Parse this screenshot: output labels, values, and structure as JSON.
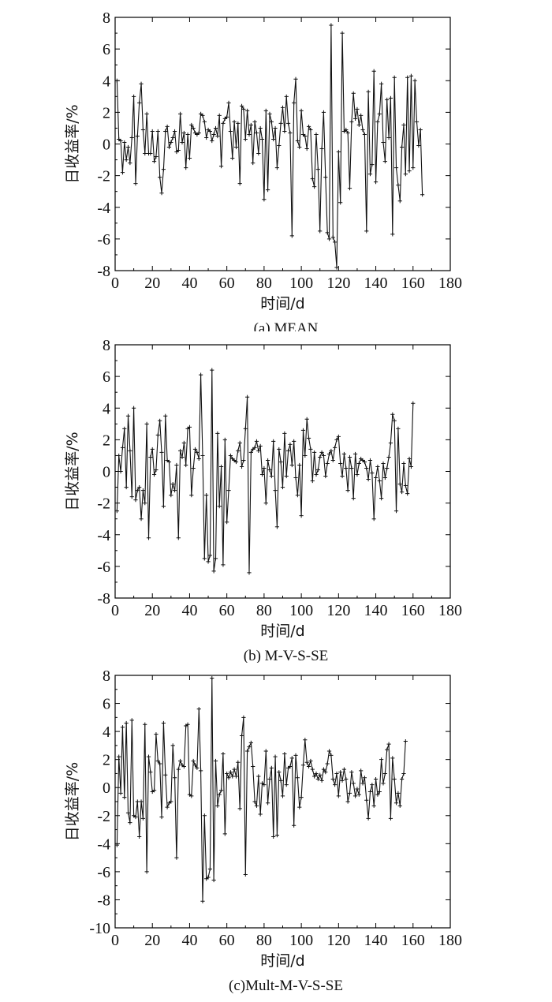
{
  "chart_data": [
    {
      "type": "line",
      "caption": "(a) MEAN",
      "xlabel": "时间/d",
      "ylabel": "日收益率/%",
      "xlim": [
        0,
        180
      ],
      "ylim": [
        -8,
        8
      ],
      "xticks": [
        "0",
        "20",
        "40",
        "60",
        "80",
        "100",
        "120",
        "140",
        "160",
        "180"
      ],
      "yticks": [
        "-8",
        "-6",
        "-4",
        "-2",
        "0",
        "2",
        "4",
        "6",
        "8"
      ],
      "series": [
        {
          "name": "MEAN",
          "x_start": 1,
          "x_step": 1,
          "values": [
            4.0,
            0.3,
            0.2,
            -1.8,
            0.1,
            -1.0,
            -0.2,
            -1.2,
            0.4,
            3.0,
            -2.5,
            0.5,
            2.6,
            3.8,
            0.9,
            -0.6,
            1.9,
            -0.6,
            -0.6,
            0.8,
            -1.1,
            -0.8,
            0.8,
            -2.1,
            -3.1,
            -1.6,
            0.8,
            1.1,
            -0.2,
            0.1,
            0.4,
            0.8,
            -0.5,
            -0.4,
            1.9,
            0.1,
            0.7,
            -1.5,
            0.6,
            -0.9,
            1.2,
            1.0,
            0.7,
            0.6,
            0.7,
            1.9,
            1.8,
            1.4,
            0.4,
            0.9,
            0.8,
            0.2,
            0.6,
            1.0,
            0.5,
            1.8,
            -1.4,
            1.3,
            1.6,
            1.7,
            2.6,
            0.8,
            -0.9,
            1.4,
            -0.2,
            1.3,
            -2.5,
            2.4,
            2.2,
            0.3,
            2.1,
            0.6,
            1.2,
            -1.2,
            1.4,
            0.7,
            -0.6,
            1.0,
            0.3,
            -3.5,
            2.1,
            -2.9,
            1.9,
            1.4,
            0.3,
            1.0,
            -1.5,
            -0.1,
            1.3,
            2.3,
            0.8,
            3.0,
            1.3,
            0.7,
            -5.8,
            2.6,
            4.1,
            0.2,
            -0.2,
            2.1,
            0.6,
            0.5,
            -0.3,
            1.1,
            0.9,
            -2.2,
            -2.7,
            0.6,
            -1.6,
            -5.5,
            -0.3,
            2.0,
            -2.1,
            -5.6,
            -6.0,
            7.5,
            -5.9,
            -6.2,
            -7.8,
            -0.5,
            -3.7,
            7.0,
            0.8,
            0.9,
            0.7,
            -2.8,
            1.4,
            3.2,
            1.6,
            2.2,
            1.2,
            1.8,
            0.9,
            0.6,
            -5.5,
            3.3,
            -1.9,
            -1.3,
            4.6,
            -2.4,
            1.4,
            1.9,
            3.8,
            0.1,
            -1.1,
            2.8,
            0.4,
            2.9,
            -5.7,
            4.2,
            -1.5,
            -2.6,
            -3.6,
            -0.2,
            1.2,
            -1.9,
            4.2,
            -1.7,
            4.3,
            -1.5,
            4.0,
            1.4,
            -0.1,
            0.9,
            -3.2
          ]
        }
      ]
    },
    {
      "type": "line",
      "caption": "(b) M-V-S-SE",
      "xlabel": "时间/d",
      "ylabel": "日收益率/%",
      "xlim": [
        0,
        180
      ],
      "ylim": [
        -8,
        8
      ],
      "xticks": [
        "0",
        "20",
        "40",
        "60",
        "80",
        "100",
        "120",
        "140",
        "160",
        "180"
      ],
      "yticks": [
        "-8",
        "-6",
        "-4",
        "-2",
        "0",
        "2",
        "4",
        "6",
        "8"
      ],
      "series": [
        {
          "name": "M-V-S-SE",
          "x_start": 1,
          "x_step": 1,
          "values": [
            -2.5,
            1.0,
            0.0,
            1.5,
            2.7,
            -1.0,
            3.5,
            1.3,
            -1.6,
            4.0,
            -1.8,
            -1.2,
            -1.0,
            -3.0,
            -1.2,
            -2.0,
            3.0,
            -4.2,
            0.9,
            1.4,
            -0.2,
            0.1,
            2.3,
            3.2,
            1.2,
            -2.2,
            3.5,
            0.7,
            0.6,
            -1.5,
            -0.8,
            -1.2,
            0.4,
            -4.2,
            1.3,
            0.9,
            1.8,
            0.4,
            2.7,
            2.8,
            -1.5,
            0.2,
            1.4,
            1.2,
            0.8,
            6.1,
            1.0,
            -5.5,
            -1.5,
            -5.7,
            -5.3,
            6.4,
            -6.3,
            -5.5,
            2.4,
            -2.2,
            0.3,
            -5.9,
            2.0,
            -3.2,
            -1.2,
            1.0,
            0.8,
            0.7,
            0.6,
            1.3,
            1.8,
            0.3,
            0.7,
            2.7,
            4.7,
            -6.4,
            1.2,
            1.4,
            1.5,
            1.9,
            1.3,
            1.6,
            -0.2,
            0.2,
            -2.0,
            0.7,
            0.1,
            -0.3,
            1.9,
            -1.2,
            -3.5,
            1.4,
            0.6,
            -1.0,
            2.4,
            -0.3,
            1.3,
            1.7,
            0.4,
            1.9,
            -0.4,
            -1.5,
            0.4,
            -2.8,
            2.6,
            1.0,
            3.3,
            2.1,
            1.4,
            -0.6,
            1.2,
            -0.2,
            0.1,
            0.9,
            1.2,
            1.0,
            -0.3,
            0.5,
            1.1,
            1.3,
            0.7,
            1.5,
            2.0,
            2.2,
            0.5,
            -0.3,
            1.1,
            0.2,
            -1.2,
            0.9,
            0.2,
            -1.7,
            1.1,
            -0.2,
            0.5,
            0.8,
            0.7,
            0.6,
            0.2,
            -0.5,
            0.7,
            -0.1,
            -3.0,
            -0.4,
            0.3,
            -0.6,
            -1.7,
            0.5,
            -0.4,
            0.2,
            0.9,
            1.8,
            3.6,
            3.2,
            -2.5,
            2.7,
            -0.8,
            -1.3,
            0.5,
            -0.9,
            -1.4,
            0.8,
            0.3,
            4.3
          ]
        }
      ]
    },
    {
      "type": "line",
      "caption": "(c)Mult-M-V-S-SE",
      "xlabel": "时间/d",
      "ylabel": "日收益率/%",
      "xlim": [
        0,
        180
      ],
      "ylim": [
        -10,
        8
      ],
      "xticks": [
        "0",
        "20",
        "40",
        "60",
        "80",
        "100",
        "120",
        "140",
        "160",
        "180"
      ],
      "yticks": [
        "-10",
        "-8",
        "-6",
        "-4",
        "-2",
        "0",
        "2",
        "4",
        "6",
        "8"
      ],
      "series": [
        {
          "name": "Mult-M-V-S-SE",
          "x_start": 1,
          "x_step": 1,
          "values": [
            -4.1,
            2.2,
            -0.4,
            4.3,
            -0.7,
            4.6,
            -1.8,
            -2.5,
            4.8,
            -2.0,
            -2.1,
            -1.0,
            -3.5,
            -1.0,
            -2.2,
            4.5,
            -6.0,
            2.2,
            1.1,
            -0.3,
            -0.2,
            3.8,
            1.9,
            1.7,
            -2.1,
            4.6,
            0.9,
            -1.4,
            -1.1,
            -1.0,
            3.0,
            0.7,
            -5.0,
            1.3,
            1.9,
            1.6,
            1.5,
            4.4,
            4.5,
            -0.5,
            -0.6,
            1.9,
            1.6,
            1.4,
            5.6,
            1.2,
            -8.1,
            -2.0,
            -6.5,
            -6.4,
            -5.8,
            7.8,
            -6.6,
            1.9,
            -1.3,
            -0.5,
            -0.2,
            2.4,
            -3.3,
            1.0,
            0.7,
            1.1,
            0.8,
            1.3,
            0.8,
            1.8,
            -1.5,
            3.7,
            5.0,
            -6.2,
            2.6,
            2.9,
            3.2,
            1.5,
            -1.0,
            -1.3,
            0.8,
            -1.9,
            0.3,
            0.2,
            2.6,
            -1.1,
            0.6,
            1.4,
            -3.5,
            2.2,
            -3.4,
            1.1,
            0.5,
            -0.6,
            2.4,
            0.2,
            1.4,
            1.5,
            2.1,
            -2.7,
            2.3,
            0.7,
            -1.4,
            -0.7,
            1.6,
            3.4,
            1.8,
            1.5,
            1.9,
            1.3,
            0.8,
            1.0,
            0.6,
            0.9,
            0.5,
            1.3,
            1.1,
            1.7,
            2.6,
            2.3,
            0.6,
            0.2,
            1.0,
            -0.6,
            1.1,
            0.5,
            1.3,
            0.6,
            -1.0,
            -0.4,
            1.1,
            0.3,
            -0.6,
            -0.1,
            -0.5,
            1.2,
            0.3,
            0.7,
            -0.9,
            -2.2,
            -0.3,
            0.2,
            -1.3,
            0.6,
            -0.5,
            -0.3,
            2.0,
            0.3,
            1.0,
            2.7,
            3.1,
            -2.2,
            2.1,
            0.6,
            -1.1,
            -0.4,
            -1.3,
            0.6,
            1.0,
            3.3
          ]
        }
      ]
    }
  ]
}
